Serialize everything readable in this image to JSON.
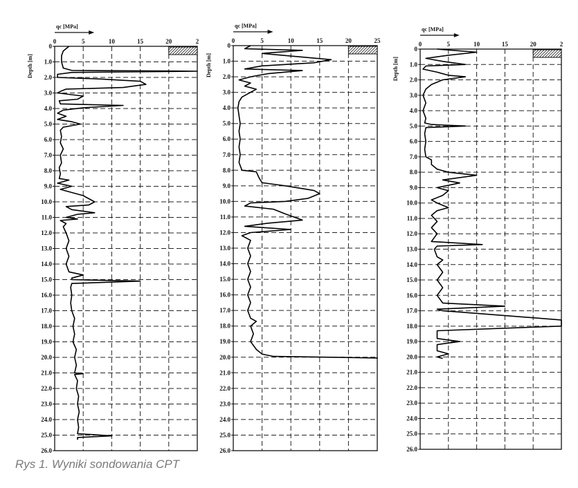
{
  "caption": "Rys 1. Wyniki sondowania CPT",
  "chart_data": [
    {
      "type": "line",
      "xlabel": "qc [MPa]",
      "ylabel": "Depth [m]",
      "xlim": [
        0,
        25
      ],
      "ylim": [
        0,
        26
      ],
      "x_ticks": [
        "0",
        "5",
        "10",
        "15",
        "20",
        "2"
      ],
      "y_ticks": [
        "0",
        "1.0",
        "2.0",
        "3.0",
        "4.0",
        "5.0",
        "6.0",
        "7.0",
        "8.0",
        "9.0",
        "10.0",
        "11.0",
        "12.0",
        "13.0",
        "14.0",
        "15.0",
        "16.0",
        "17.0",
        "18.0",
        "19.0",
        "20.0",
        "21.0",
        "22.0",
        "23.0",
        "24.0",
        "25.0",
        "26.0"
      ],
      "grid": true,
      "series": [
        {
          "points": [
            [
              2.5,
              0
            ],
            [
              1.5,
              0.3
            ],
            [
              1.2,
              0.6
            ],
            [
              1.2,
              1.0
            ],
            [
              1.5,
              1.4
            ],
            [
              3,
              1.55
            ],
            [
              25,
              1.6
            ],
            [
              3,
              1.68
            ],
            [
              0.5,
              1.8
            ],
            [
              0.5,
              2.0
            ],
            [
              8,
              2.1
            ],
            [
              15,
              2.25
            ],
            [
              16,
              2.45
            ],
            [
              12,
              2.65
            ],
            [
              2,
              2.75
            ],
            [
              1,
              2.9
            ],
            [
              0.5,
              3.0
            ],
            [
              5,
              3.2
            ],
            [
              4,
              3.4
            ],
            [
              0.8,
              3.5
            ],
            [
              1,
              3.7
            ],
            [
              12,
              3.8
            ],
            [
              5,
              3.95
            ],
            [
              1.5,
              4.1
            ],
            [
              0.5,
              4.3
            ],
            [
              2,
              4.5
            ],
            [
              0.5,
              4.7
            ],
            [
              3,
              4.85
            ],
            [
              4.5,
              5.0
            ],
            [
              1.5,
              5.2
            ],
            [
              1,
              5.4
            ],
            [
              1.2,
              5.8
            ],
            [
              1,
              6.2
            ],
            [
              1.5,
              6.6
            ],
            [
              1,
              7.0
            ],
            [
              1.2,
              7.5
            ],
            [
              0.8,
              7.8
            ],
            [
              1,
              8.2
            ],
            [
              0.8,
              8.5
            ],
            [
              2.5,
              8.6
            ],
            [
              0.5,
              8.8
            ],
            [
              3,
              9.0
            ],
            [
              1,
              9.2
            ],
            [
              3,
              9.4
            ],
            [
              5,
              9.6
            ],
            [
              6,
              9.8
            ],
            [
              7,
              10.0
            ],
            [
              6,
              10.2
            ],
            [
              2,
              10.3
            ],
            [
              3,
              10.5
            ],
            [
              7,
              10.7
            ],
            [
              4,
              10.8
            ],
            [
              2,
              11.0
            ],
            [
              4,
              11.1
            ],
            [
              1,
              11.2
            ],
            [
              2,
              11.4
            ],
            [
              1.5,
              11.6
            ],
            [
              2,
              12.0
            ],
            [
              2.5,
              12.5
            ],
            [
              2,
              13.0
            ],
            [
              2.5,
              13.5
            ],
            [
              2,
              14.0
            ],
            [
              2.5,
              14.5
            ],
            [
              5,
              14.7
            ],
            [
              3,
              14.9
            ],
            [
              3,
              15.0
            ],
            [
              15,
              15.1
            ],
            [
              3,
              15.25
            ],
            [
              2.8,
              15.5
            ],
            [
              3,
              16.0
            ],
            [
              2.8,
              16.5
            ],
            [
              3,
              17.0
            ],
            [
              3.5,
              17.5
            ],
            [
              3.2,
              18.0
            ],
            [
              3.5,
              18.5
            ],
            [
              3.2,
              19.0
            ],
            [
              3.8,
              19.5
            ],
            [
              3.5,
              20.0
            ],
            [
              3.8,
              20.5
            ],
            [
              3.5,
              21.0
            ],
            [
              5,
              21.05
            ],
            [
              3.5,
              21.1
            ],
            [
              4,
              21.5
            ],
            [
              3.8,
              22.0
            ],
            [
              4.2,
              22.5
            ],
            [
              4,
              23.0
            ],
            [
              4.3,
              23.5
            ],
            [
              4,
              24.0
            ],
            [
              4.2,
              24.5
            ],
            [
              4,
              24.9
            ],
            [
              10,
              25.05
            ],
            [
              4,
              25.15
            ],
            [
              4,
              25.3
            ]
          ]
        }
      ]
    },
    {
      "type": "line",
      "xlabel": "qc [MPa]",
      "ylabel": "Depth [m]",
      "xlim": [
        0,
        25
      ],
      "ylim": [
        0,
        26
      ],
      "x_ticks": [
        "0",
        "5",
        "10",
        "15",
        "20",
        "25"
      ],
      "y_ticks": [
        "0",
        "1.0",
        "2.0",
        "3.0",
        "4.0",
        "5.0",
        "6.0",
        "7.0",
        "8.0",
        "9.0",
        "10.0",
        "11.0",
        "12.0",
        "13.0",
        "14.0",
        "15.0",
        "16.0",
        "17.0",
        "18.0",
        "19.0",
        "20.0",
        "21.0",
        "22.0",
        "23.0",
        "24.0",
        "25.0",
        "26.0"
      ],
      "grid": true,
      "series": [
        {
          "points": [
            [
              3,
              0
            ],
            [
              2,
              0.2
            ],
            [
              12,
              0.3
            ],
            [
              5,
              0.5
            ],
            [
              11,
              0.7
            ],
            [
              17,
              0.9
            ],
            [
              14,
              1.1
            ],
            [
              5,
              1.3
            ],
            [
              2,
              1.5
            ],
            [
              12,
              1.6
            ],
            [
              6,
              1.8
            ],
            [
              3,
              2.0
            ],
            [
              1,
              2.2
            ],
            [
              3,
              2.4
            ],
            [
              2,
              2.6
            ],
            [
              4,
              2.8
            ],
            [
              3,
              3.0
            ],
            [
              1.5,
              3.3
            ],
            [
              1,
              3.6
            ],
            [
              0.8,
              4.0
            ],
            [
              1,
              4.5
            ],
            [
              1.2,
              5.0
            ],
            [
              1,
              5.5
            ],
            [
              1.2,
              6.0
            ],
            [
              1,
              6.5
            ],
            [
              1.2,
              7.0
            ],
            [
              1,
              7.5
            ],
            [
              1.5,
              8.0
            ],
            [
              4,
              8.1
            ],
            [
              4.5,
              8.5
            ],
            [
              5,
              8.8
            ],
            [
              9,
              9.0
            ],
            [
              14,
              9.3
            ],
            [
              15,
              9.5
            ],
            [
              13,
              9.8
            ],
            [
              9,
              10.0
            ],
            [
              3,
              10.1
            ],
            [
              2,
              10.3
            ],
            [
              7,
              10.5
            ],
            [
              9,
              10.8
            ],
            [
              12,
              11.2
            ],
            [
              6,
              11.4
            ],
            [
              2,
              11.6
            ],
            [
              10,
              11.8
            ],
            [
              3,
              12.0
            ],
            [
              1.5,
              12.2
            ],
            [
              3,
              12.5
            ],
            [
              2.5,
              13.0
            ],
            [
              3,
              13.5
            ],
            [
              2.5,
              14.0
            ],
            [
              3,
              14.5
            ],
            [
              2.5,
              15.0
            ],
            [
              3,
              15.5
            ],
            [
              2.5,
              16.0
            ],
            [
              3,
              16.5
            ],
            [
              2.5,
              17.0
            ],
            [
              3,
              17.5
            ],
            [
              4,
              17.7
            ],
            [
              3,
              18.0
            ],
            [
              3.5,
              18.5
            ],
            [
              3,
              19.0
            ],
            [
              4,
              19.5
            ],
            [
              5,
              19.8
            ],
            [
              7,
              19.95
            ],
            [
              25,
              20.05
            ],
            [
              25,
              20.1
            ]
          ]
        }
      ]
    },
    {
      "type": "line",
      "xlabel": "qc [MPa]",
      "ylabel": "Depth [m]",
      "xlim": [
        0,
        25
      ],
      "ylim": [
        0,
        26
      ],
      "x_ticks": [
        "0",
        "5",
        "10",
        "15",
        "20",
        "2"
      ],
      "y_ticks": [
        "0",
        "1.0",
        "2.0",
        "3.0",
        "4.0",
        "5.0",
        "6.0",
        "7.0",
        "8.0",
        "9.0",
        "10.0",
        "11.0",
        "12.0",
        "13.0",
        "14.0",
        "15.0",
        "16.0",
        "17.0",
        "18.0",
        "19.0",
        "20.0",
        "21.0",
        "22.0",
        "23.0",
        "24.0",
        "25.0",
        "26.0"
      ],
      "grid": true,
      "series": [
        {
          "points": [
            [
              3,
              0
            ],
            [
              10,
              0.2
            ],
            [
              5,
              0.4
            ],
            [
              1,
              0.6
            ],
            [
              4,
              0.8
            ],
            [
              8,
              1.0
            ],
            [
              1,
              1.1
            ],
            [
              0.5,
              1.3
            ],
            [
              3,
              1.5
            ],
            [
              5,
              1.7
            ],
            [
              8,
              1.8
            ],
            [
              4,
              2.0
            ],
            [
              2,
              2.3
            ],
            [
              1,
              2.6
            ],
            [
              0.5,
              3.0
            ],
            [
              1,
              3.5
            ],
            [
              0.5,
              4.0
            ],
            [
              1,
              4.5
            ],
            [
              0.8,
              4.8
            ],
            [
              2,
              4.9
            ],
            [
              8,
              5.0
            ],
            [
              1,
              5.1
            ],
            [
              0.8,
              5.5
            ],
            [
              1,
              6.0
            ],
            [
              0.8,
              6.5
            ],
            [
              1,
              7.0
            ],
            [
              2,
              7.2
            ],
            [
              2,
              7.5
            ],
            [
              3,
              7.8
            ],
            [
              5,
              8.0
            ],
            [
              10,
              8.2
            ],
            [
              4,
              8.5
            ],
            [
              7,
              8.7
            ],
            [
              3,
              9.0
            ],
            [
              5,
              9.2
            ],
            [
              4,
              9.5
            ],
            [
              2,
              9.8
            ],
            [
              3,
              10.0
            ],
            [
              5,
              10.3
            ],
            [
              3,
              10.5
            ],
            [
              2,
              10.8
            ],
            [
              3,
              11.2
            ],
            [
              2,
              11.6
            ],
            [
              3,
              12.0
            ],
            [
              2,
              12.5
            ],
            [
              11,
              12.7
            ],
            [
              3,
              12.8
            ],
            [
              2.5,
              13.0
            ],
            [
              3,
              13.5
            ],
            [
              4,
              13.7
            ],
            [
              3,
              14.0
            ],
            [
              4,
              14.5
            ],
            [
              3,
              15.0
            ],
            [
              4,
              15.5
            ],
            [
              3,
              16.0
            ],
            [
              4,
              16.5
            ],
            [
              15,
              16.7
            ],
            [
              3,
              16.9
            ],
            [
              4,
              17.0
            ],
            [
              25,
              17.6
            ],
            [
              25,
              18.0
            ],
            [
              3,
              18.3
            ],
            [
              3,
              18.8
            ],
            [
              7,
              19.0
            ],
            [
              3,
              19.2
            ],
            [
              3,
              19.6
            ],
            [
              5,
              19.8
            ],
            [
              3,
              20.0
            ],
            [
              4,
              20.1
            ]
          ]
        }
      ]
    }
  ]
}
